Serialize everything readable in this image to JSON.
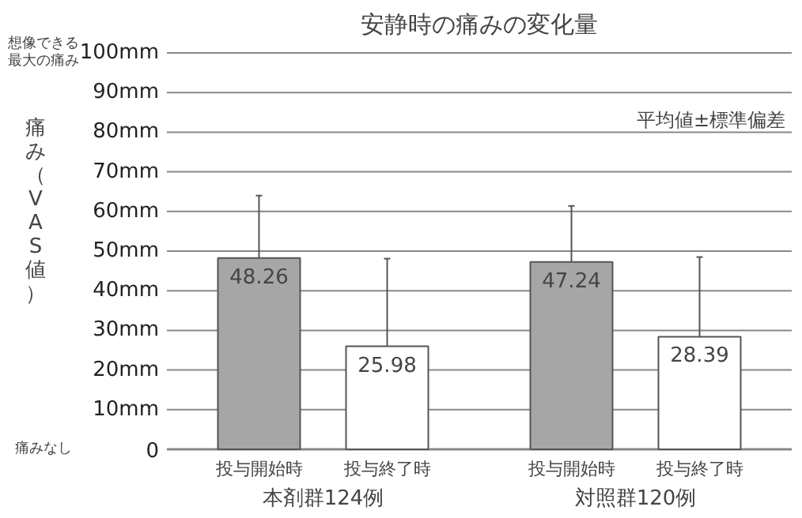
{
  "chart_data": {
    "type": "bar",
    "title": "安静時の痛みの変化量",
    "ylabel": "痛み（VAS値）",
    "categories": [
      "本剤群124例",
      "対照群120例"
    ],
    "series": [
      {
        "name": "投与開始時",
        "color": "#a6a6a6",
        "values": [
          48.26,
          47.24
        ],
        "errors": [
          [
            48.26,
            64
          ],
          [
            47.24,
            61.4
          ]
        ]
      },
      {
        "name": "投与終了時",
        "color": "#ffffff",
        "values": [
          25.98,
          28.39
        ],
        "errors": [
          [
            25.98,
            48.1
          ],
          [
            28.39,
            48.5
          ]
        ]
      }
    ],
    "ylim": [
      0,
      100
    ],
    "yticks": [
      {
        "value": 0,
        "label": "0"
      },
      {
        "value": 10,
        "label": "10mm"
      },
      {
        "value": 20,
        "label": "20mm"
      },
      {
        "value": 30,
        "label": "30mm"
      },
      {
        "value": 40,
        "label": "40mm"
      },
      {
        "value": 50,
        "label": "50mm"
      },
      {
        "value": 60,
        "label": "60mm"
      },
      {
        "value": 70,
        "label": "70mm"
      },
      {
        "value": 80,
        "label": "80mm"
      },
      {
        "value": 90,
        "label": "90mm"
      },
      {
        "value": 100,
        "label": "100mm"
      }
    ],
    "annotations": [
      "想像できる最大の痛み",
      "痛みなし",
      "平均値±標準偏差"
    ],
    "grid": "y",
    "data_labels": true
  }
}
